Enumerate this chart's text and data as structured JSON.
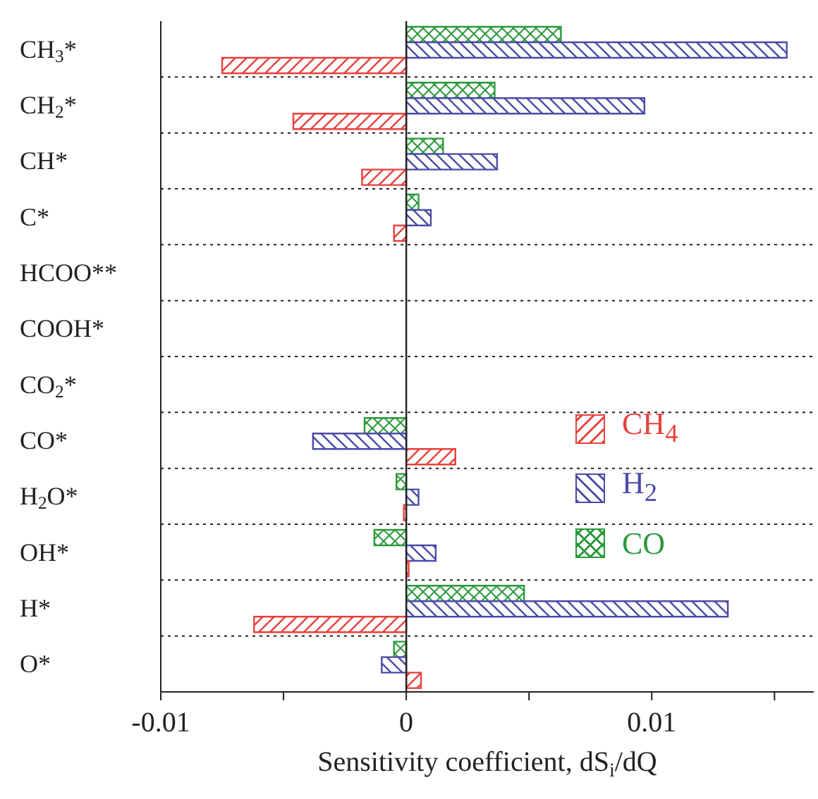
{
  "chart_data": {
    "type": "bar",
    "orientation": "horizontal",
    "xlabel": "Sensitivity coefficient, dS$_{i}$/dQ",
    "categories": [
      "CH$_{3}$*",
      "CH$_{2}$*",
      "CH*",
      "C*",
      "HCOO**",
      "COOH*",
      "CO$_{2}$*",
      "CO*",
      "H$_{2}$O*",
      "OH*",
      "H*",
      "O*"
    ],
    "series": [
      {
        "name": "CH$_{4}$",
        "color": "#e8403a",
        "values": [
          -0.0075,
          -0.0046,
          -0.0018,
          -0.0005,
          0,
          0,
          0,
          0.002,
          -0.0001,
          0.0001,
          -0.0062,
          0.0006
        ]
      },
      {
        "name": "H$_{2}$",
        "color": "#4a4aa8",
        "values": [
          0.0155,
          0.0097,
          0.0037,
          0.001,
          0,
          0,
          0,
          -0.0038,
          0.0005,
          0.0012,
          0.0131,
          -0.001
        ]
      },
      {
        "name": "CO",
        "color": "#2a9a3a",
        "values": [
          0.0063,
          0.0036,
          0.0015,
          0.0005,
          0,
          0,
          0,
          -0.0017,
          -0.0004,
          -0.0013,
          0.0048,
          -0.0005
        ]
      }
    ],
    "xlim": [
      -0.01,
      0.0166
    ],
    "xticks": [
      -0.01,
      {
        "value": -0.005,
        "label": null
      },
      0,
      {
        "value": 0.005,
        "label": null
      },
      0.01,
      {
        "value": 0.015,
        "label": null
      }
    ],
    "ref_lines": [
      {
        "axis": "x",
        "value": 0
      }
    ],
    "grid": "y",
    "legend": "right"
  }
}
